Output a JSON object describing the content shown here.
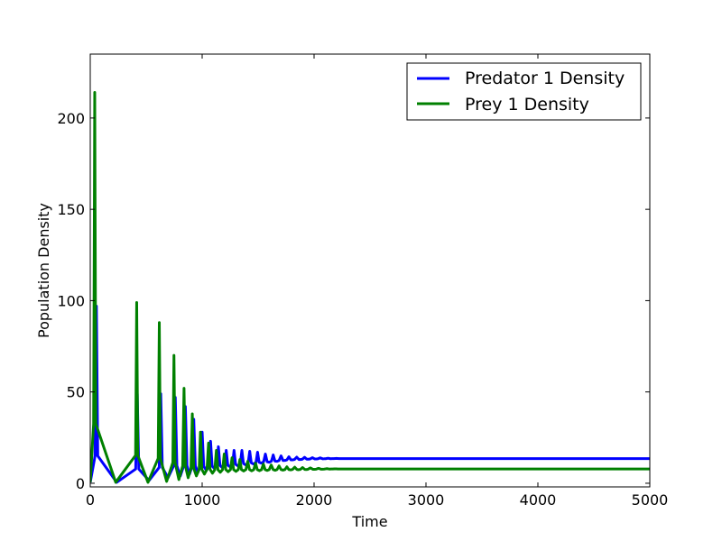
{
  "chart_data": {
    "type": "line",
    "title": "",
    "xlabel": "Time",
    "ylabel": "Population Density",
    "xlim": [
      0,
      5000
    ],
    "ylim": [
      -2,
      235
    ],
    "xticks": [
      0,
      1000,
      2000,
      3000,
      4000,
      5000
    ],
    "yticks": [
      0,
      50,
      100,
      150,
      200
    ],
    "grid": false,
    "legend_position": "top-right",
    "series": [
      {
        "name": "Predator 1 Density",
        "color": "#0000ff",
        "peaks": [
          {
            "t": 55,
            "v": 97,
            "w": 12,
            "trough": 0.5
          },
          {
            "t": 420,
            "v": 49,
            "w": 14,
            "trough": 0.5
          },
          {
            "t": 630,
            "v": 49,
            "w": 14,
            "trough": 1.5
          },
          {
            "t": 760,
            "v": 47,
            "w": 14,
            "trough": 3
          },
          {
            "t": 850,
            "v": 42,
            "w": 14,
            "trough": 4
          },
          {
            "t": 925,
            "v": 35,
            "w": 14,
            "trough": 5
          },
          {
            "t": 1000,
            "v": 28,
            "w": 14,
            "trough": 6
          },
          {
            "t": 1075,
            "v": 23,
            "w": 14,
            "trough": 7
          },
          {
            "t": 1145,
            "v": 20,
            "w": 14,
            "trough": 8
          },
          {
            "t": 1215,
            "v": 18,
            "w": 14,
            "trough": 8.5
          },
          {
            "t": 1285,
            "v": 18,
            "w": 14,
            "trough": 9
          },
          {
            "t": 1355,
            "v": 18,
            "w": 14,
            "trough": 9.5
          },
          {
            "t": 1425,
            "v": 17.5,
            "w": 14,
            "trough": 10
          },
          {
            "t": 1495,
            "v": 17,
            "w": 14,
            "trough": 10.5
          },
          {
            "t": 1565,
            "v": 16,
            "w": 16,
            "trough": 11
          },
          {
            "t": 1635,
            "v": 15.5,
            "w": 16,
            "trough": 11.5
          },
          {
            "t": 1705,
            "v": 15,
            "w": 18,
            "trough": 12
          },
          {
            "t": 1775,
            "v": 14.5,
            "w": 18,
            "trough": 12.5
          },
          {
            "t": 1845,
            "v": 14.3,
            "w": 20,
            "trough": 12.8
          },
          {
            "t": 1915,
            "v": 14.2,
            "w": 20,
            "trough": 13
          },
          {
            "t": 1985,
            "v": 14,
            "w": 20,
            "trough": 13.2
          },
          {
            "t": 2055,
            "v": 13.9,
            "w": 22,
            "trough": 13.3
          },
          {
            "t": 2125,
            "v": 13.7,
            "w": 22,
            "trough": 13.4
          },
          {
            "t": 2200,
            "v": 13.6,
            "w": 24,
            "trough": 13.5
          }
        ],
        "steady_state": 13.5
      },
      {
        "name": "Prey 1 Density",
        "color": "#008000",
        "peaks": [
          {
            "t": 40,
            "v": 214,
            "w": 10,
            "trough": 0.5
          },
          {
            "t": 415,
            "v": 99,
            "w": 10,
            "trough": 0.5
          },
          {
            "t": 617,
            "v": 88,
            "w": 10,
            "trough": 0.5
          },
          {
            "t": 748,
            "v": 70,
            "w": 10,
            "trough": 1
          },
          {
            "t": 838,
            "v": 52,
            "w": 12,
            "trough": 2
          },
          {
            "t": 912,
            "v": 38,
            "w": 12,
            "trough": 3
          },
          {
            "t": 985,
            "v": 28,
            "w": 12,
            "trough": 4
          },
          {
            "t": 1057,
            "v": 22,
            "w": 14,
            "trough": 5
          },
          {
            "t": 1127,
            "v": 18,
            "w": 14,
            "trough": 5.5
          },
          {
            "t": 1197,
            "v": 16,
            "w": 14,
            "trough": 6
          },
          {
            "t": 1267,
            "v": 14,
            "w": 14,
            "trough": 6.3
          },
          {
            "t": 1337,
            "v": 13,
            "w": 14,
            "trough": 6.5
          },
          {
            "t": 1407,
            "v": 12,
            "w": 16,
            "trough": 6.7
          },
          {
            "t": 1477,
            "v": 11,
            "w": 16,
            "trough": 6.8
          },
          {
            "t": 1547,
            "v": 10.5,
            "w": 16,
            "trough": 6.9
          },
          {
            "t": 1617,
            "v": 10,
            "w": 18,
            "trough": 7
          },
          {
            "t": 1687,
            "v": 9.5,
            "w": 18,
            "trough": 7.1
          },
          {
            "t": 1757,
            "v": 9,
            "w": 18,
            "trough": 7.2
          },
          {
            "t": 1827,
            "v": 8.8,
            "w": 20,
            "trough": 7.3
          },
          {
            "t": 1897,
            "v": 8.6,
            "w": 20,
            "trough": 7.4
          },
          {
            "t": 1967,
            "v": 8.4,
            "w": 22,
            "trough": 7.5
          },
          {
            "t": 2040,
            "v": 8.2,
            "w": 22,
            "trough": 7.6
          },
          {
            "t": 2115,
            "v": 8,
            "w": 24,
            "trough": 7.7
          },
          {
            "t": 2190,
            "v": 7.9,
            "w": 24,
            "trough": 7.8
          }
        ],
        "steady_state": 7.8
      }
    ]
  }
}
